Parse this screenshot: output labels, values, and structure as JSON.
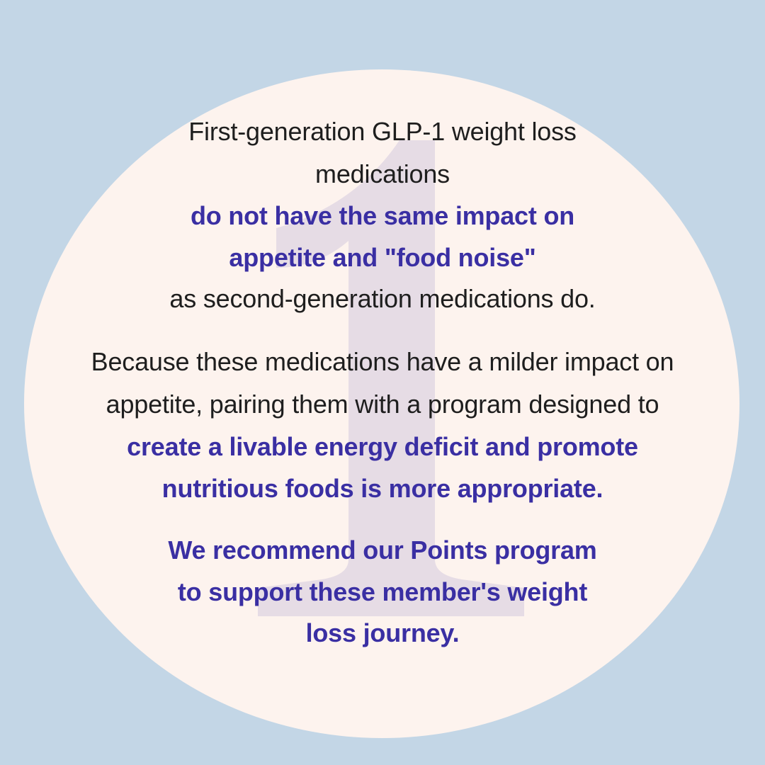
{
  "colors": {
    "background": "#c3d6e6",
    "circle": "#fdf3ee",
    "numeral": "#e6dce5",
    "body_text": "#1e1e1e",
    "highlight_text": "#3a2fa3"
  },
  "numeral": "1",
  "paragraph1": {
    "line1": "First-generation GLP-1 weight loss",
    "line2": "medications",
    "line3": "do not have the same impact on",
    "line4": "appetite and \"food noise\"",
    "line5": "as second-generation medications do."
  },
  "paragraph2": {
    "line1": "Because these medications have a milder impact on",
    "line2": "appetite, pairing them with a program designed to",
    "line3": "create a livable energy deficit and promote",
    "line4": "nutritious foods is more appropriate."
  },
  "paragraph3": {
    "line1": "We recommend our Points program",
    "line2": "to support these member's weight",
    "line3": "loss journey."
  }
}
